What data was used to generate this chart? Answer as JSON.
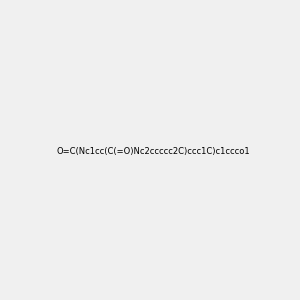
{
  "smiles": "O=C(Nc1cc(C(=O)Nc2ccccc2C)ccc1C)c1ccco1",
  "title": "",
  "bg_color": "#f0f0f0",
  "bond_color": "#000000",
  "atom_colors": {
    "O": "#ff0000",
    "N": "#0000cd",
    "H": "#008080",
    "C": "#000000"
  },
  "figsize": [
    3.0,
    3.0
  ],
  "dpi": 100
}
